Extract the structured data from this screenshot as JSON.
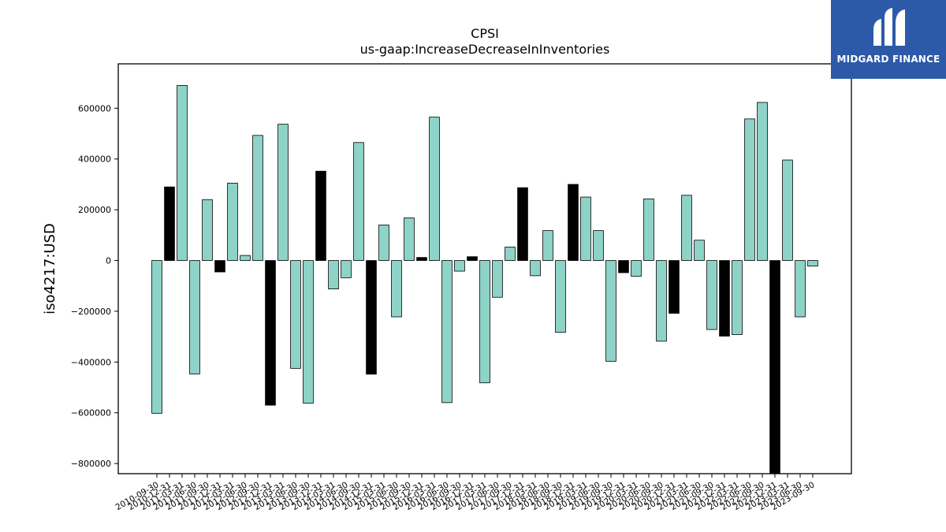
{
  "chart_data": {
    "type": "bar",
    "title": "CPSI",
    "subtitle": "us-gaap:IncreaseDecreaseInInventories",
    "xlabel": "",
    "ylabel": "iso4217:USD",
    "ylim": [
      -840000,
      775000
    ],
    "yticks": [
      -800000,
      -600000,
      -400000,
      -200000,
      0,
      200000,
      400000,
      600000
    ],
    "ytick_labels": [
      "−800000",
      "−600000",
      "−400000",
      "−200000",
      "0",
      "200000",
      "400000",
      "600000"
    ],
    "categories": [
      "2010-09-30",
      "2010-12-31",
      "2011-03-31",
      "2011-06-30",
      "2011-09-30",
      "2011-12-31",
      "2012-03-31",
      "2012-06-30",
      "2012-09-30",
      "2012-12-31",
      "2013-03-31",
      "2013-06-30",
      "2013-09-30",
      "2013-12-31",
      "2014-03-31",
      "2014-06-30",
      "2014-09-30",
      "2014-12-31",
      "2015-03-31",
      "2015-06-30",
      "2015-09-30",
      "2015-12-31",
      "2016-03-31",
      "2016-06-30",
      "2016-09-30",
      "2016-12-31",
      "2017-03-31",
      "2017-06-30",
      "2017-09-30",
      "2017-12-31",
      "2018-03-31",
      "2018-06-30",
      "2018-09-30",
      "2018-12-31",
      "2019-03-31",
      "2019-06-30",
      "2019-09-30",
      "2019-12-31",
      "2020-03-31",
      "2020-06-30",
      "2020-09-30",
      "2020-12-31",
      "2021-03-31",
      "2021-06-30",
      "2021-09-30",
      "2021-12-31",
      "2022-03-31",
      "2022-06-30",
      "2022-09-30",
      "2022-12-31",
      "2023-03-31",
      "2023-06-30",
      "2023-09-30"
    ],
    "xtick_labels": [
      "2010-09-30",
      "2010-12-31",
      "2011-03-31",
      "2011-06-30",
      "2011-09-30",
      "2011-12-31",
      "2012-03-31",
      "2012-06-30",
      "2012-09-30",
      "2012-12-31",
      "2013-03-31",
      "2013-06-30",
      "2013-09-30",
      "2013-12-31",
      "2014-03-31",
      "2014-06-30",
      "2014-09-30",
      "2014-12-31",
      "2015-03-31",
      "2015-06-30",
      "2015-09-30",
      "2015-12-31",
      "2016-03-31",
      "2016-06-30",
      "2016-09-30",
      "2016-12-31",
      "2017-03-31",
      "2017-06-30",
      "2017-09-30",
      "2017-12-31",
      "2018-03-31",
      "2018-06-30",
      "2018-09-30",
      "2018-12-31",
      "2019-03-31",
      "2019-06-30",
      "2019-09-30",
      "2019-12-31",
      "2020-03-31",
      "2020-06-30",
      "2020-09-30",
      "2020-12-31",
      "2021-03-31",
      "2021-06-30",
      "2021-09-30",
      "2021-12-31",
      "2022-03-31",
      "2022-06-30",
      "2022-09-30",
      "2022-12-31",
      "2023-03-31",
      "2023-06-30",
      "2023-09-30"
    ],
    "values": [
      -602000,
      290000,
      690000,
      -447000,
      240000,
      -45000,
      305000,
      20000,
      493000,
      -570000,
      537000,
      -425000,
      -562000,
      352000,
      -112000,
      -68000,
      465000,
      -448000,
      140000,
      -222000,
      168000,
      12000,
      565000,
      -560000,
      -42000,
      15000,
      -482000,
      -145000,
      53000,
      287000,
      -60000,
      118000,
      -283000,
      300000,
      250000,
      118000,
      -397000,
      -48000,
      -62000,
      243000,
      -318000,
      -208000,
      257000,
      80000,
      -272000,
      -298000,
      -292000,
      558000,
      623000,
      -840000,
      396000,
      -222000,
      -22000
    ],
    "colors": [
      "teal",
      "black",
      "teal",
      "teal",
      "teal",
      "black",
      "teal",
      "teal",
      "teal",
      "black",
      "teal",
      "teal",
      "teal",
      "black",
      "teal",
      "teal",
      "teal",
      "black",
      "teal",
      "teal",
      "teal",
      "black",
      "teal",
      "teal",
      "teal",
      "black",
      "teal",
      "teal",
      "teal",
      "black",
      "teal",
      "teal",
      "teal",
      "black",
      "teal",
      "teal",
      "teal",
      "black",
      "teal",
      "teal",
      "teal",
      "black",
      "teal",
      "teal",
      "teal",
      "black",
      "teal",
      "teal",
      "teal",
      "black",
      "teal",
      "teal",
      "teal"
    ],
    "palette": {
      "teal": "#8dd3c7",
      "black": "#000000",
      "edge": "#000000"
    },
    "grid": false,
    "legend": "none"
  },
  "logo": {
    "text": "MIDGARD FINANCE",
    "background": "#2d5aa8"
  }
}
